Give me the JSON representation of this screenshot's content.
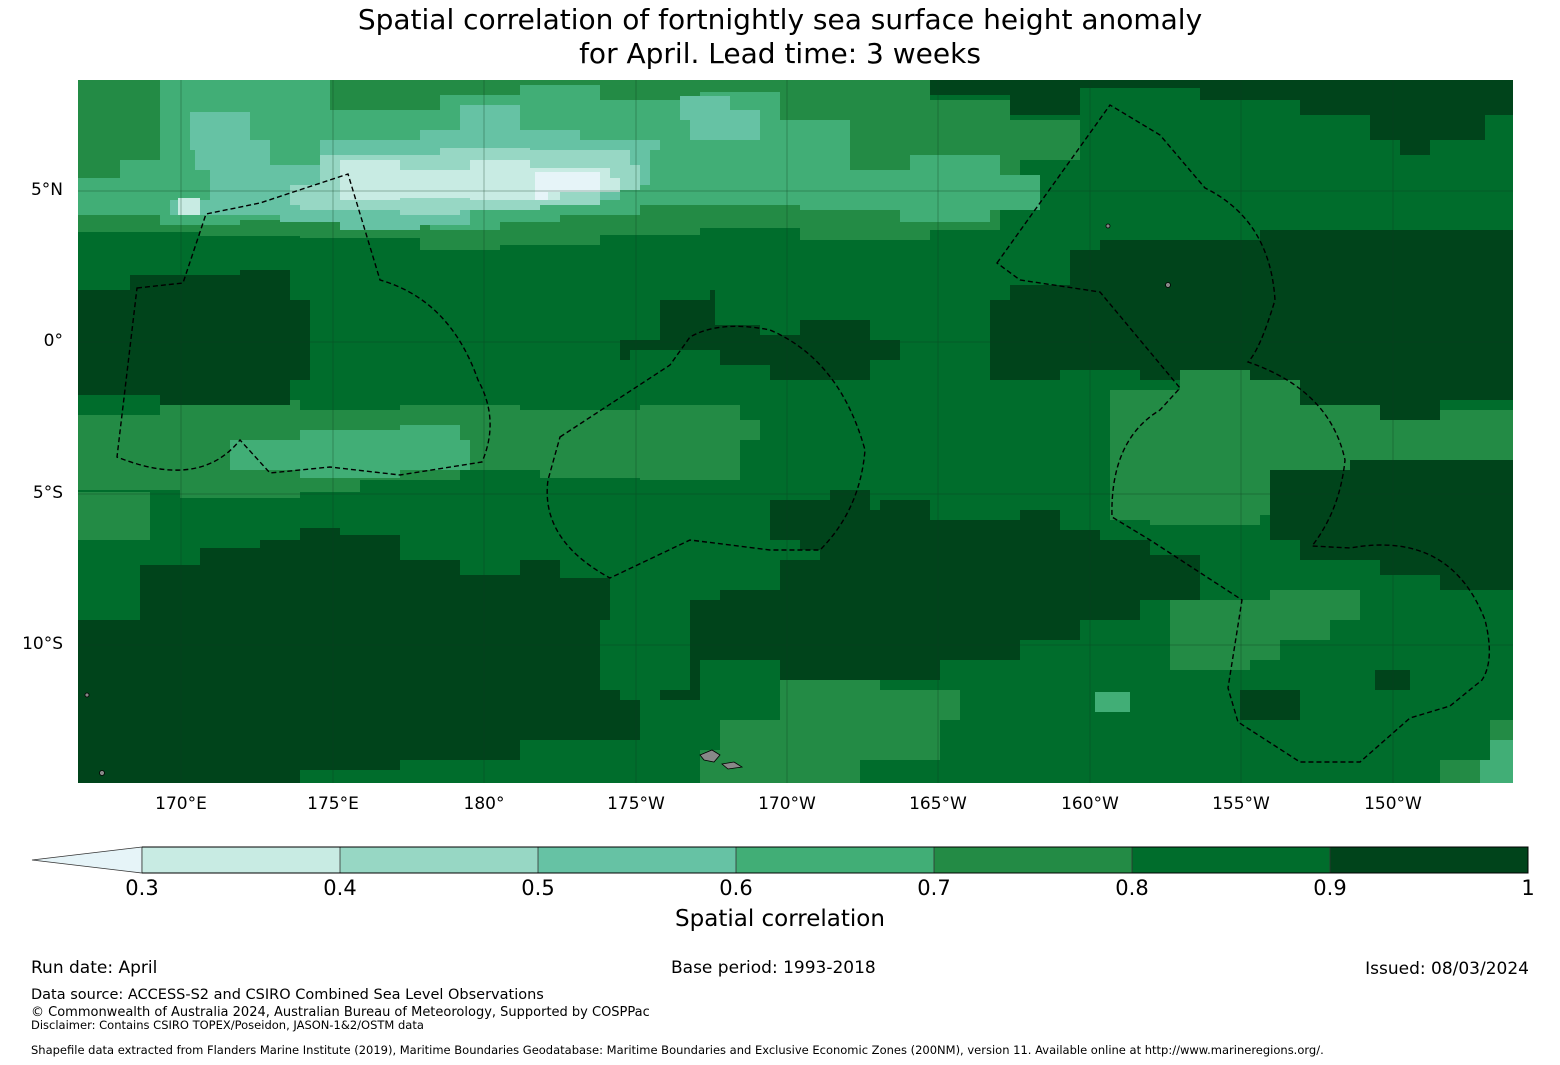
{
  "title": {
    "line1": "Spatial correlation of fortnightly sea surface height anomaly",
    "line2": "for April. Lead time: 3 weeks"
  },
  "map": {
    "x_labels": [
      "170°E",
      "175°E",
      "180°",
      "175°W",
      "170°W",
      "165°W",
      "160°W",
      "155°W",
      "150°W"
    ],
    "y_labels": [
      "5°N",
      "0°",
      "5°S",
      "10°S"
    ],
    "palette": {
      "lt03": "#e6f4f8",
      "c03_04": "#c8ebe3",
      "c04_05": "#97d7c4",
      "c05_06": "#66c2a4",
      "c06_07": "#41ae76",
      "c07_08": "#238b45",
      "c08_09": "#006d2c",
      "c09_10": "#00441b"
    }
  },
  "colorbar": {
    "ticks": [
      "0.3",
      "0.4",
      "0.5",
      "0.6",
      "0.7",
      "0.8",
      "0.9",
      "1"
    ],
    "label": "Spatial correlation"
  },
  "footer": {
    "run_date": "Run date: April",
    "base_period": "Base period: 1993-2018",
    "issued": "Issued: 08/03/2024",
    "data_source": "Data source: ACCESS-S2 and CSIRO Combined Sea Level Observations",
    "copyright": "© Commonwealth of Australia 2024, Australian Bureau of Meteorology, Supported by COSPPac",
    "disclaimer": "Disclaimer: Contains CSIRO TOPEX/Poseidon, JASON-1&2/OSTM data",
    "shapefile": "Shapefile data extracted from Flanders Marine Institute (2019), Maritime Boundaries Geodatabase: Maritime Boundaries and Exclusive Economic Zones (200NM), version 11. Available online at http://www.marineregions.org/."
  }
}
